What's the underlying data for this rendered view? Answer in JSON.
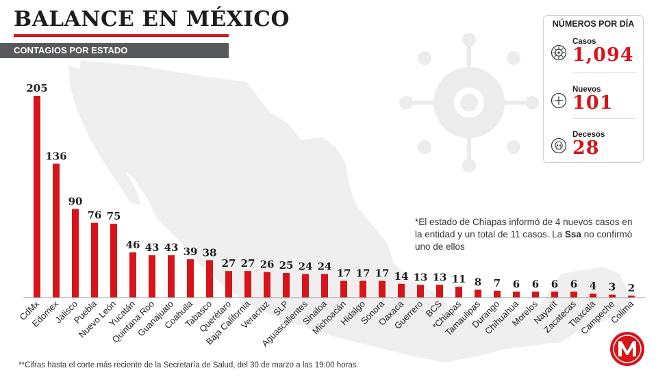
{
  "header": {
    "title_part1": "BALANCE EN ",
    "title_part2": "MÉXICO",
    "subtitle": "CONTAGIOS POR ESTADO"
  },
  "stats_box": {
    "title": "NÚMEROS POR DÍA",
    "items": [
      {
        "label": "Casos",
        "value": "1,094",
        "icon": "virus-icon"
      },
      {
        "label": "Nuevos",
        "value": "101",
        "icon": "plus-circle-icon"
      },
      {
        "label": "Decesos",
        "value": "28",
        "icon": "skull-icon"
      }
    ]
  },
  "note": {
    "text_before": "*El estado de Chiapas informó de 4 nuevos casos en la entidad y un total de 11 casos. La ",
    "bold": "Ssa",
    "text_after": " no confirmó uno de ellos"
  },
  "footnote": "**Cifras hasta el corte más reciente de la Secretaría de Salud, del 30 de marzo a las 19:00 horas.",
  "colors": {
    "accent": "#d7141a",
    "dark_bar": "#58595b",
    "map": "#ececec"
  },
  "chart_data": {
    "type": "bar",
    "categories": [
      "CdMx",
      "Edomex",
      "Jalisco",
      "Puebla",
      "Nuevo León",
      "Yucatán",
      "Quintana Roo",
      "Guanajuato",
      "Coahuila",
      "Tabasco",
      "Querétaro",
      "Baja California",
      "Veracruz",
      "SLP",
      "Aguascalientes",
      "Sinaloa",
      "Michoacán",
      "Hidalgo",
      "Sonora",
      "Oaxaca",
      "Guerrero",
      "BCS",
      "*Chiapas",
      "Tamaulipas",
      "Durango",
      "Chihuahua",
      "Morelos",
      "Nayarit",
      "Zacatecas",
      "Tlaxcala",
      "Campeche",
      "Colima"
    ],
    "values": [
      205,
      136,
      90,
      76,
      75,
      46,
      43,
      43,
      39,
      38,
      27,
      27,
      26,
      25,
      24,
      24,
      17,
      17,
      17,
      14,
      13,
      13,
      11,
      8,
      7,
      6,
      6,
      6,
      6,
      4,
      3,
      2
    ],
    "ylim": [
      0,
      205
    ],
    "title": "CONTAGIOS POR ESTADO"
  }
}
